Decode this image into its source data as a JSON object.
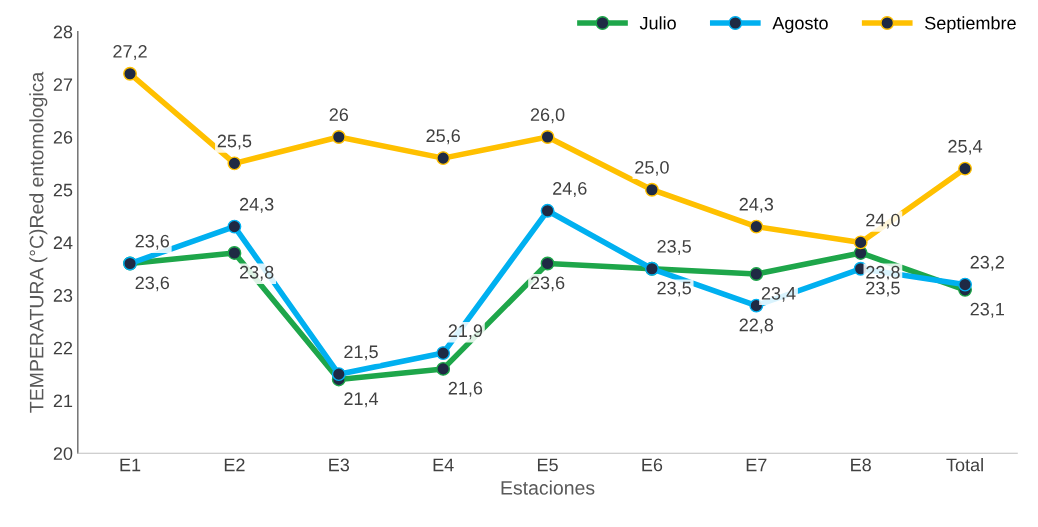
{
  "chart_data": {
    "type": "line",
    "xlabel": "Estaciones",
    "ylabel": "TEMPERATURA (°C)Red entomologica",
    "categories": [
      "E1",
      "E2",
      "E3",
      "E4",
      "E5",
      "E6",
      "E7",
      "E8",
      "Total"
    ],
    "series": [
      {
        "name": "Julio",
        "color": "#1ea64a",
        "values": [
          23.6,
          23.8,
          21.4,
          21.6,
          23.6,
          23.5,
          23.4,
          23.8,
          23.1
        ],
        "value_labels": [
          "23,6",
          "23,8",
          "21,4",
          "21,6",
          "23,6",
          "23,5",
          "23,4",
          "23,8",
          "23,1"
        ]
      },
      {
        "name": "Agosto",
        "color": "#00b0f0",
        "values": [
          23.6,
          24.3,
          21.5,
          21.9,
          24.6,
          23.5,
          22.8,
          23.5,
          23.2
        ],
        "value_labels": [
          "23,6",
          "24,3",
          "21,5",
          "21,9",
          "24,6",
          "23,5",
          "22,8",
          "23,5",
          "23,2"
        ]
      },
      {
        "name": "Septiembre",
        "color": "#ffc000",
        "values": [
          27.2,
          25.5,
          26,
          25.6,
          26.0,
          25.0,
          24.3,
          24.0,
          25.4
        ],
        "value_labels": [
          "27,2",
          "25,5",
          "26",
          "25,6",
          "26,0",
          "25,0",
          "24,3",
          "24,0",
          "25,4"
        ]
      }
    ],
    "ylim": [
      20,
      28
    ],
    "yticks": [
      20,
      21,
      22,
      23,
      24,
      25,
      26,
      27,
      28
    ],
    "grid": false,
    "legend": "top right",
    "marker": "circle",
    "line_style": "solid"
  }
}
